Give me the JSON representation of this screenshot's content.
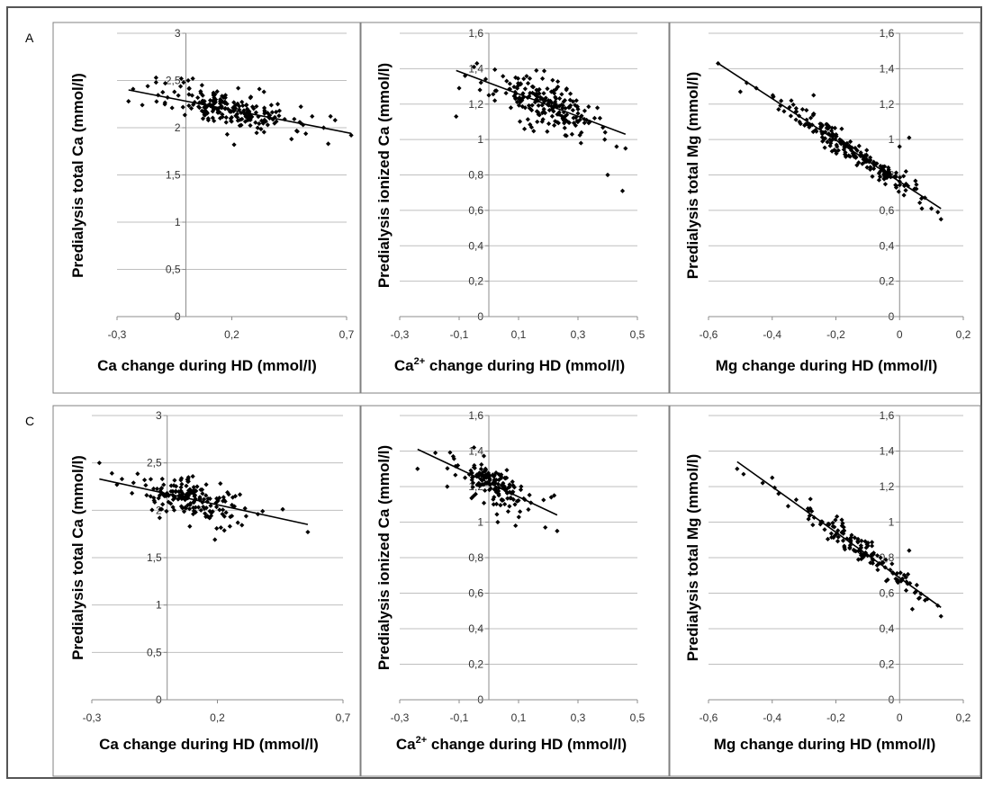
{
  "panel_labels": [
    "A",
    "C"
  ],
  "colors": {
    "marker": "#000000",
    "trend": "#000000",
    "grid": "#bfbfbf",
    "axis": "#8c8c8c",
    "frame": "#808080"
  },
  "chart_data": [
    {
      "type": "scatter",
      "row": "A",
      "xlabel": "Ca change during HD (mmol/l)",
      "ylabel": "Predialysis total Ca (mmol/l)",
      "xlim": [
        -0.3,
        0.7
      ],
      "ylim": [
        0,
        3
      ],
      "xticks": [
        -0.3,
        0.2,
        0.7
      ],
      "xtick_labels": [
        "-0,3",
        "0,2",
        "0,7"
      ],
      "yticks": [
        0,
        0.5,
        1,
        1.5,
        2,
        2.5,
        3
      ],
      "ytick_labels": [
        "0",
        "0,5",
        "1",
        "1,5",
        "2",
        "2,5",
        "3"
      ],
      "trendline": [
        [
          -0.25,
          2.4
        ],
        [
          0.72,
          1.94
        ]
      ],
      "scatter_profile": {
        "n": 190,
        "x_range": [
          -0.25,
          0.72
        ],
        "x_center": 0.2,
        "x_sd": 0.13,
        "residual_sd": 0.09,
        "seed": 11
      },
      "points": [
        [
          -0.25,
          2.28
        ],
        [
          -0.23,
          2.41
        ],
        [
          -0.19,
          2.24
        ],
        [
          -0.13,
          2.48
        ],
        [
          -0.13,
          2.53
        ],
        [
          -0.09,
          2.47
        ],
        [
          -0.08,
          2.32
        ],
        [
          -0.05,
          2.38
        ],
        [
          -0.02,
          2.52
        ],
        [
          -0.01,
          2.48
        ],
        [
          0.01,
          2.5
        ],
        [
          0.03,
          2.52
        ],
        [
          0.07,
          2.45
        ],
        [
          0.12,
          2.35
        ],
        [
          0.15,
          2.3
        ],
        [
          0.18,
          1.93
        ],
        [
          0.21,
          1.82
        ],
        [
          0.27,
          2.18
        ],
        [
          0.32,
          2.41
        ],
        [
          0.34,
          2.38
        ],
        [
          0.4,
          2.25
        ],
        [
          0.43,
          2.09
        ],
        [
          0.46,
          1.88
        ],
        [
          0.5,
          2.05
        ],
        [
          0.55,
          2.12
        ],
        [
          0.6,
          2.0
        ],
        [
          0.62,
          1.83
        ],
        [
          0.63,
          2.12
        ],
        [
          0.65,
          2.08
        ],
        [
          0.72,
          1.92
        ]
      ]
    },
    {
      "type": "scatter",
      "row": "A",
      "xlabel": "Ca²⁺ change during HD (mmol/l)",
      "ylabel": "Predialysis ionized Ca (mmol/l)",
      "xlabel_parts": [
        "Ca",
        "2+",
        " change during HD (mmol/l)"
      ],
      "xlim": [
        -0.3,
        0.5
      ],
      "ylim": [
        0,
        1.6
      ],
      "xticks": [
        -0.3,
        -0.1,
        0.1,
        0.3,
        0.5
      ],
      "xtick_labels": [
        "-0,3",
        "-0,1",
        "0,1",
        "0,3",
        "0,5"
      ],
      "yticks": [
        0,
        0.2,
        0.4,
        0.6,
        0.8,
        1,
        1.2,
        1.4,
        1.6
      ],
      "ytick_labels": [
        "0",
        "0,2",
        "0,4",
        "0,6",
        "0,8",
        "1",
        "1,2",
        "1,4",
        "1,6"
      ],
      "trendline": [
        [
          -0.11,
          1.39
        ],
        [
          0.46,
          1.03
        ]
      ],
      "scatter_profile": {
        "n": 190,
        "x_range": [
          -0.11,
          0.46
        ],
        "x_center": 0.19,
        "x_sd": 0.08,
        "residual_sd": 0.06,
        "seed": 23
      },
      "points": [
        [
          -0.11,
          1.13
        ],
        [
          -0.1,
          1.29
        ],
        [
          -0.08,
          1.36
        ],
        [
          -0.05,
          1.41
        ],
        [
          -0.04,
          1.43
        ],
        [
          -0.03,
          1.28
        ],
        [
          0.0,
          1.25
        ],
        [
          0.02,
          1.22
        ],
        [
          0.06,
          1.33
        ],
        [
          0.09,
          1.35
        ],
        [
          0.12,
          1.06
        ],
        [
          0.16,
          1.39
        ],
        [
          0.22,
          1.08
        ],
        [
          0.28,
          1.03
        ],
        [
          0.31,
          0.98
        ],
        [
          0.34,
          1.1
        ],
        [
          0.39,
          1.0
        ],
        [
          0.4,
          0.8
        ],
        [
          0.43,
          0.96
        ],
        [
          0.45,
          0.71
        ],
        [
          0.46,
          0.95
        ]
      ]
    },
    {
      "type": "scatter",
      "row": "A",
      "xlabel": "Mg change during HD (mmol/l)",
      "ylabel": "Predialysis total Mg (mmol/l)",
      "xlim": [
        -0.6,
        0.2
      ],
      "ylim": [
        0,
        1.6
      ],
      "xticks": [
        -0.6,
        -0.4,
        -0.2,
        0,
        0.2
      ],
      "xtick_labels": [
        "-0,6",
        "-0,4",
        "-0,2",
        "0",
        "0,2"
      ],
      "yticks": [
        0,
        0.2,
        0.4,
        0.6,
        0.8,
        1,
        1.2,
        1.4,
        1.6
      ],
      "ytick_labels": [
        "0",
        "0,2",
        "0,4",
        "0,6",
        "0,8",
        "1",
        "1,2",
        "1,4",
        "1,6"
      ],
      "trendline": [
        [
          -0.57,
          1.43
        ],
        [
          0.13,
          0.61
        ]
      ],
      "scatter_profile": {
        "n": 190,
        "x_range": [
          -0.57,
          0.13
        ],
        "x_center": -0.16,
        "x_sd": 0.1,
        "residual_sd": 0.035,
        "seed": 37
      },
      "points": [
        [
          -0.57,
          1.43
        ],
        [
          -0.5,
          1.27
        ],
        [
          -0.48,
          1.32
        ],
        [
          -0.45,
          1.29
        ],
        [
          -0.38,
          1.17
        ],
        [
          -0.34,
          1.22
        ],
        [
          -0.27,
          1.25
        ],
        [
          0.0,
          0.96
        ],
        [
          0.02,
          0.82
        ],
        [
          0.03,
          1.01
        ],
        [
          0.07,
          0.61
        ],
        [
          0.1,
          0.61
        ],
        [
          0.12,
          0.59
        ],
        [
          0.13,
          0.55
        ]
      ]
    },
    {
      "type": "scatter",
      "row": "C",
      "xlabel": "Ca change during HD (mmol/l)",
      "ylabel": "Predialysis total Ca (mmol/l)",
      "xlim": [
        -0.3,
        0.7
      ],
      "ylim": [
        0,
        3
      ],
      "xticks": [
        -0.3,
        0.2,
        0.7
      ],
      "xtick_labels": [
        "-0,3",
        "0,2",
        "0,7"
      ],
      "yticks": [
        0,
        0.5,
        1,
        1.5,
        2,
        2.5,
        3
      ],
      "ytick_labels": [
        "0",
        "0,5",
        "1",
        "1,5",
        "2",
        "2,5",
        "3"
      ],
      "trendline": [
        [
          -0.27,
          2.33
        ],
        [
          0.56,
          1.85
        ]
      ],
      "scatter_profile": {
        "n": 170,
        "x_range": [
          -0.27,
          0.56
        ],
        "x_center": 0.1,
        "x_sd": 0.1,
        "residual_sd": 0.1,
        "seed": 41
      },
      "points": [
        [
          -0.27,
          2.5
        ],
        [
          -0.22,
          2.39
        ],
        [
          -0.2,
          2.27
        ],
        [
          -0.18,
          2.33
        ],
        [
          -0.14,
          2.18
        ],
        [
          -0.09,
          2.32
        ],
        [
          -0.03,
          1.92
        ],
        [
          0.09,
          1.83
        ],
        [
          0.17,
          1.99
        ],
        [
          0.19,
          1.69
        ],
        [
          0.22,
          1.96
        ],
        [
          0.31,
          2.02
        ],
        [
          0.38,
          1.99
        ],
        [
          0.46,
          2.01
        ],
        [
          0.56,
          1.77
        ]
      ]
    },
    {
      "type": "scatter",
      "row": "C",
      "xlabel": "Ca²⁺ change during HD (mmol/l)",
      "ylabel": "Predialysis ionized Ca (mmol/l)",
      "xlabel_parts": [
        "Ca",
        "2+",
        " change during HD (mmol/l)"
      ],
      "xlim": [
        -0.3,
        0.5
      ],
      "ylim": [
        0,
        1.6
      ],
      "xticks": [
        -0.3,
        -0.1,
        0.1,
        0.3,
        0.5
      ],
      "xtick_labels": [
        "-0,3",
        "-0,1",
        "0,1",
        "0,3",
        "0,5"
      ],
      "yticks": [
        0,
        0.2,
        0.4,
        0.6,
        0.8,
        1,
        1.2,
        1.4,
        1.6
      ],
      "ytick_labels": [
        "0",
        "0,2",
        "0,4",
        "0,6",
        "0,8",
        "1",
        "1,2",
        "1,4",
        "1,6"
      ],
      "trendline": [
        [
          -0.24,
          1.41
        ],
        [
          0.23,
          1.04
        ]
      ],
      "scatter_profile": {
        "n": 150,
        "x_range": [
          -0.24,
          0.23
        ],
        "x_center": 0.02,
        "x_sd": 0.06,
        "residual_sd": 0.055,
        "seed": 53
      },
      "points": [
        [
          -0.24,
          1.3
        ],
        [
          -0.18,
          1.39
        ],
        [
          -0.14,
          1.2
        ],
        [
          -0.12,
          1.37
        ],
        [
          -0.08,
          1.25
        ],
        [
          -0.05,
          1.42
        ],
        [
          0.03,
          1.0
        ],
        [
          0.09,
          0.98
        ],
        [
          0.19,
          0.97
        ],
        [
          0.21,
          1.14
        ],
        [
          0.23,
          0.95
        ],
        [
          0.22,
          1.15
        ]
      ]
    },
    {
      "type": "scatter",
      "row": "C",
      "xlabel": "Mg change during HD (mmol/l)",
      "ylabel": "Predialysis total Mg (mmol/l)",
      "xlim": [
        -0.6,
        0.2
      ],
      "ylim": [
        0,
        1.6
      ],
      "xticks": [
        -0.6,
        -0.4,
        -0.2,
        0,
        0.2
      ],
      "xtick_labels": [
        "-0,6",
        "-0,4",
        "-0,2",
        "0",
        "0,2"
      ],
      "yticks": [
        0,
        0.2,
        0.4,
        0.6,
        0.8,
        1,
        1.2,
        1.4,
        1.6
      ],
      "ytick_labels": [
        "0",
        "0,2",
        "0,4",
        "0,6",
        "0,8",
        "1",
        "1,2",
        "1,4",
        "1,6"
      ],
      "trendline": [
        [
          -0.51,
          1.34
        ],
        [
          0.13,
          0.52
        ]
      ],
      "scatter_profile": {
        "n": 130,
        "x_range": [
          -0.51,
          0.13
        ],
        "x_center": -0.13,
        "x_sd": 0.09,
        "residual_sd": 0.035,
        "seed": 67
      },
      "points": [
        [
          -0.51,
          1.3
        ],
        [
          -0.49,
          1.27
        ],
        [
          -0.43,
          1.22
        ],
        [
          -0.4,
          1.25
        ],
        [
          -0.38,
          1.16
        ],
        [
          -0.35,
          1.09
        ],
        [
          -0.28,
          1.13
        ],
        [
          0.03,
          0.84
        ],
        [
          0.04,
          0.51
        ],
        [
          0.06,
          0.57
        ],
        [
          0.08,
          0.56
        ],
        [
          0.12,
          0.53
        ],
        [
          0.13,
          0.47
        ]
      ]
    }
  ]
}
